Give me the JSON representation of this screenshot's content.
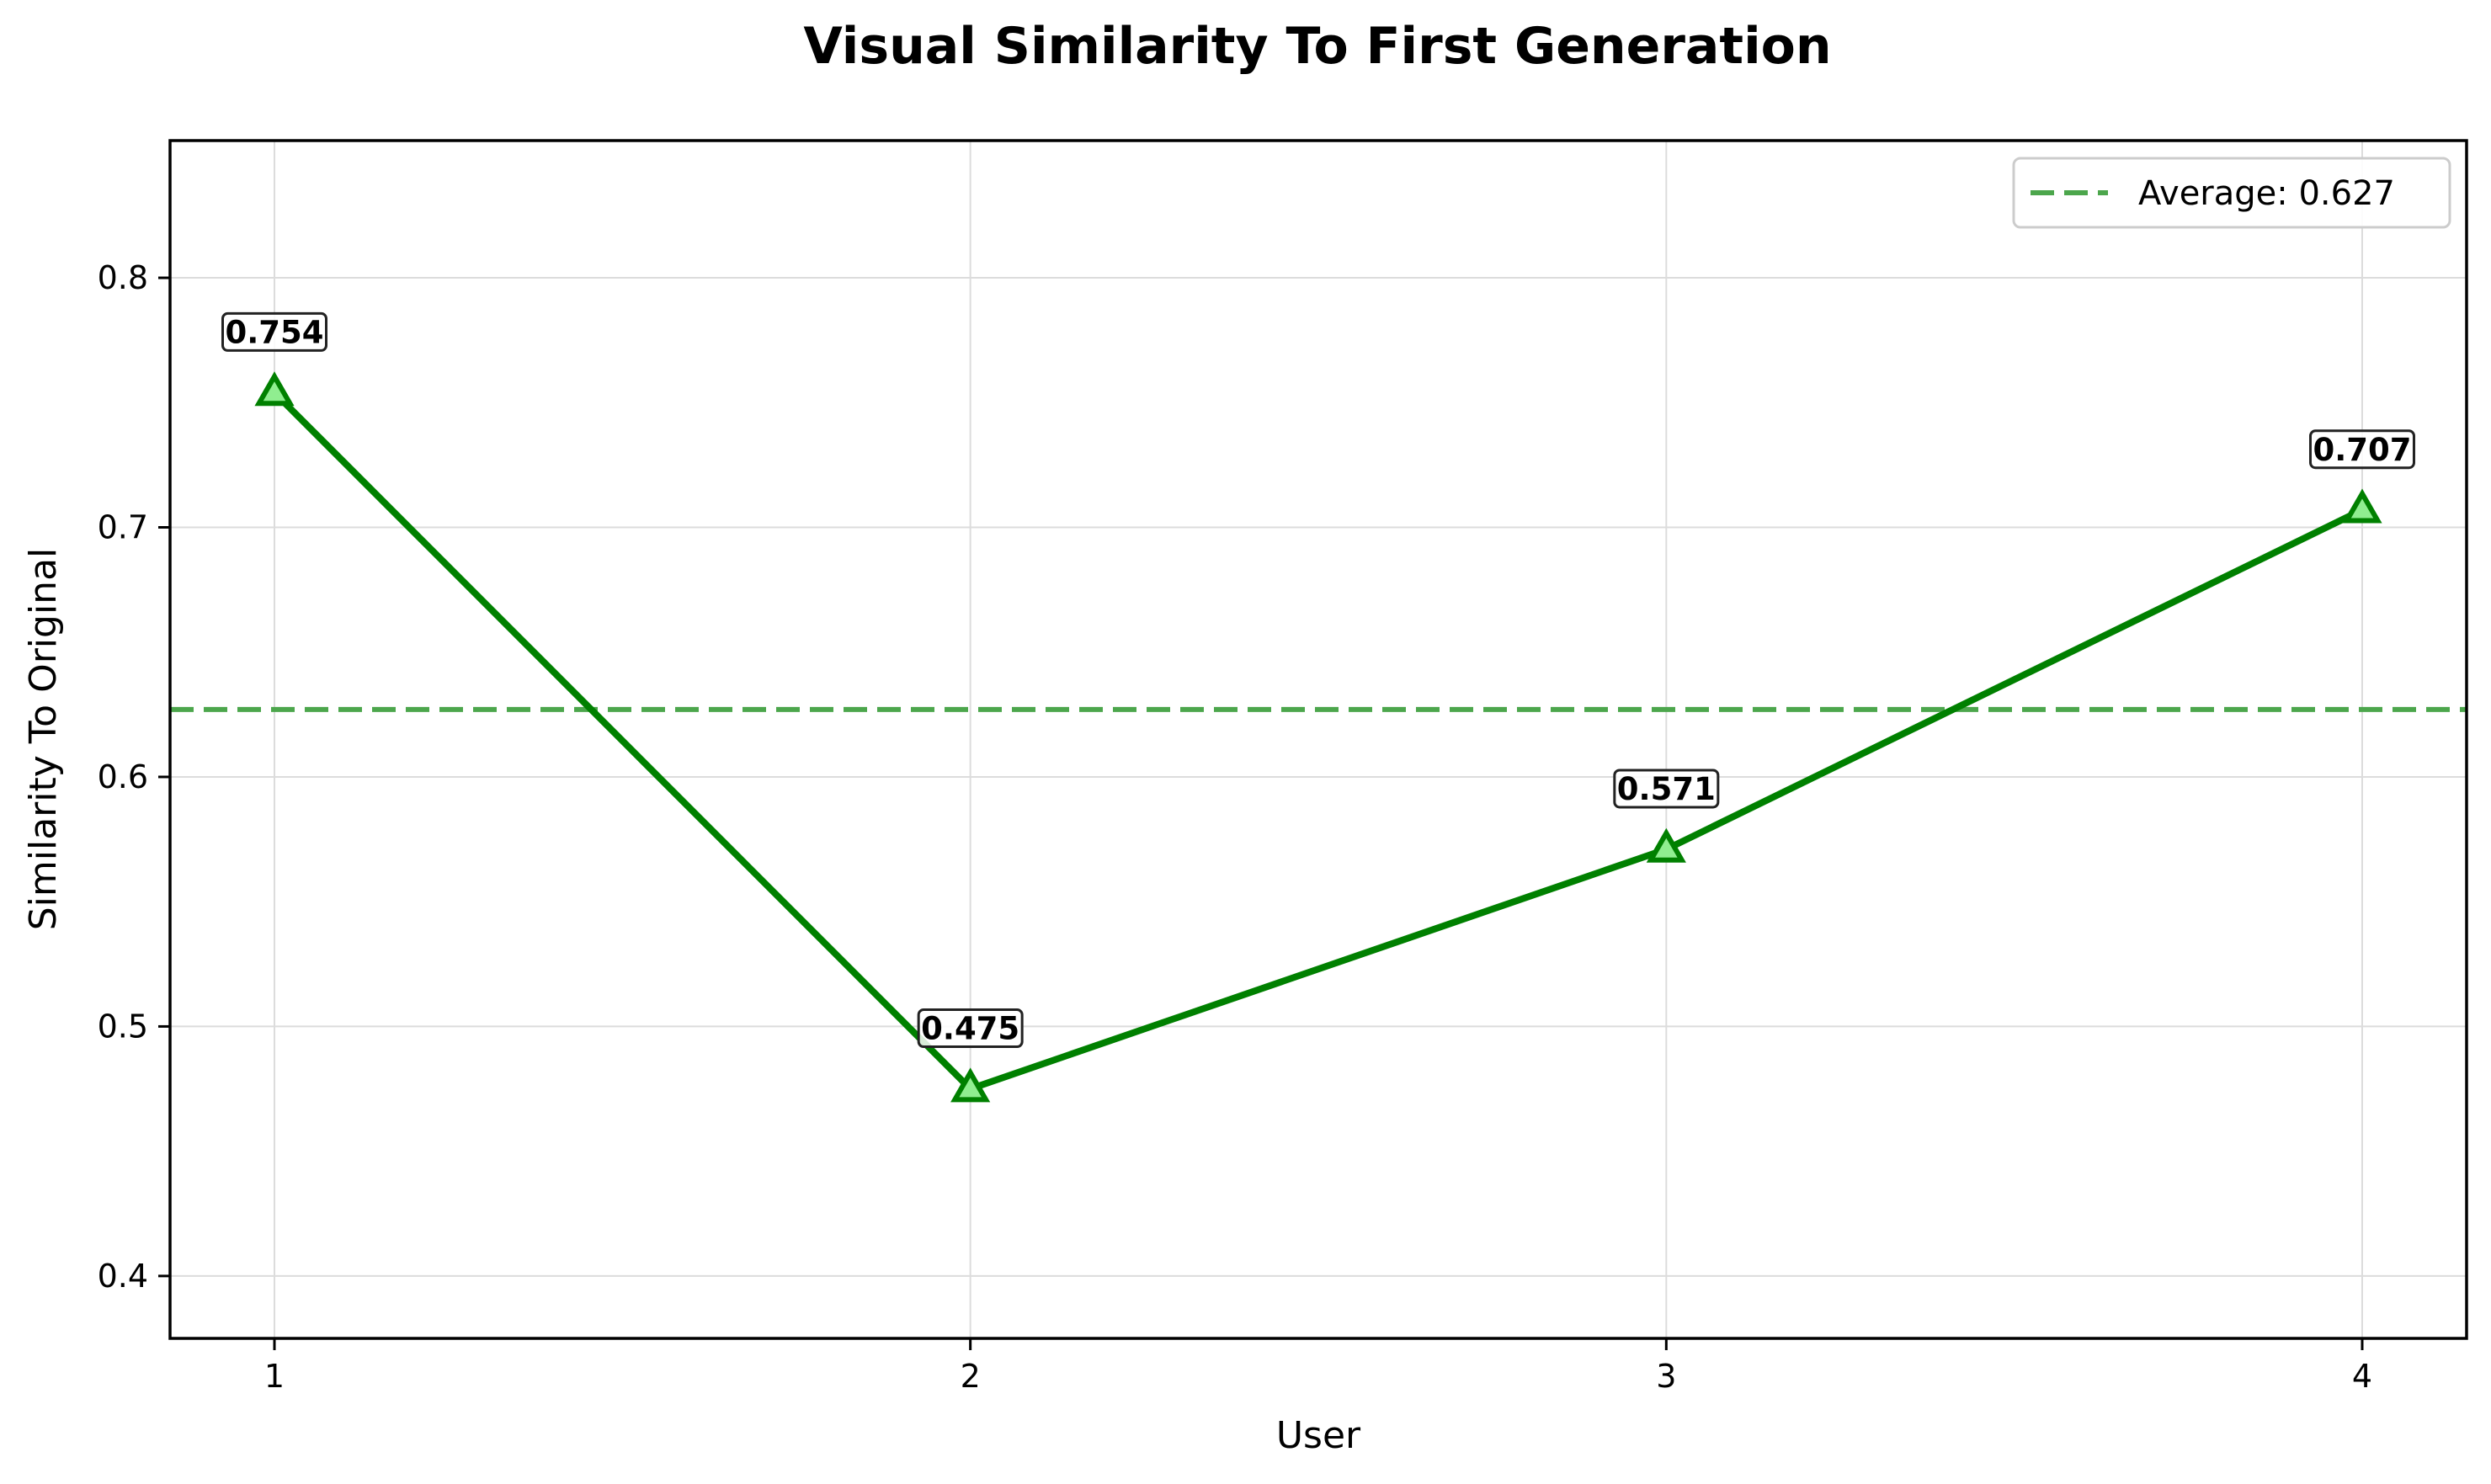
{
  "chart_data": {
    "type": "line",
    "title": "Visual Similarity To First Generation",
    "xlabel": "User",
    "ylabel": "Similarity To Original",
    "x": [
      1,
      2,
      3,
      4
    ],
    "x_tick_labels": [
      "1",
      "2",
      "3",
      "4"
    ],
    "xlim": [
      0.85,
      4.15
    ],
    "ylim": [
      0.375,
      0.855
    ],
    "y_ticks": [
      0.4,
      0.5,
      0.6,
      0.7,
      0.8
    ],
    "y_tick_labels": [
      "0.4",
      "0.5",
      "0.6",
      "0.7",
      "0.8"
    ],
    "grid": true,
    "legend_position": "top-right",
    "series": [
      {
        "values": [
          0.754,
          0.475,
          0.571,
          0.707
        ],
        "data_labels": [
          "0.754",
          "0.475",
          "0.571",
          "0.707"
        ],
        "color": "#008000",
        "marker": "triangle"
      }
    ],
    "reference_lines": [
      {
        "value": 0.627,
        "label": "Average: 0.627",
        "color": "#4ca64c",
        "style": "dashed"
      }
    ]
  }
}
